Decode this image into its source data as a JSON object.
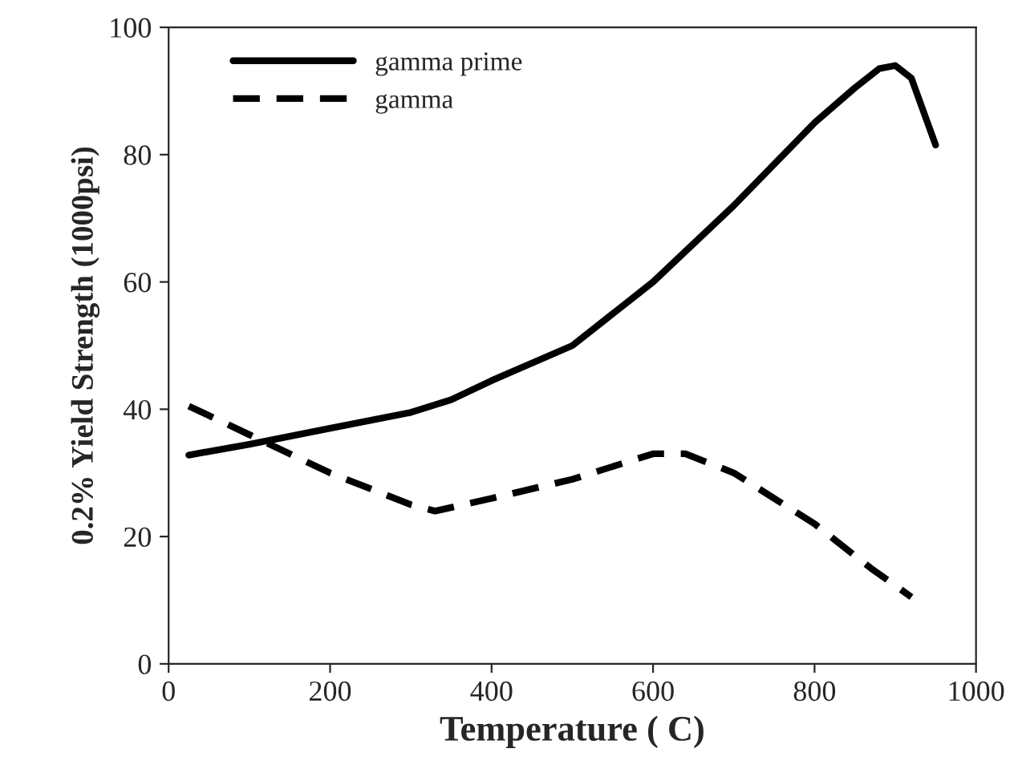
{
  "chart_data": {
    "type": "line",
    "xlabel": "Temperature ( C)",
    "ylabel": "0.2% Yield Strength (1000psi)",
    "xlim": [
      0,
      1000
    ],
    "xticks": [
      0,
      200,
      400,
      600,
      800,
      1000
    ],
    "ylim": [
      0,
      100
    ],
    "yticks": [
      0,
      20,
      40,
      60,
      80,
      100
    ],
    "grid": false,
    "legend": "top left",
    "marker": "none",
    "series": [
      {
        "name": "gamma prime",
        "color": "#000000",
        "line_style": "solid",
        "x": [
          25,
          100,
          200,
          300,
          350,
          400,
          500,
          600,
          700,
          800,
          850,
          880,
          900,
          920,
          950
        ],
        "values": [
          32.8,
          34.5,
          37,
          39.5,
          41.5,
          44.5,
          50,
          60,
          72,
          85,
          90.5,
          93.5,
          94,
          92,
          81.5
        ]
      },
      {
        "name": "gamma",
        "color": "#000000",
        "line_style": "dashed",
        "x": [
          25,
          100,
          200,
          300,
          330,
          400,
          500,
          600,
          640,
          700,
          800,
          870,
          920
        ],
        "values": [
          40.5,
          36,
          30,
          25,
          24,
          26,
          29,
          33,
          33,
          30,
          22,
          15,
          10.5
        ]
      }
    ]
  }
}
